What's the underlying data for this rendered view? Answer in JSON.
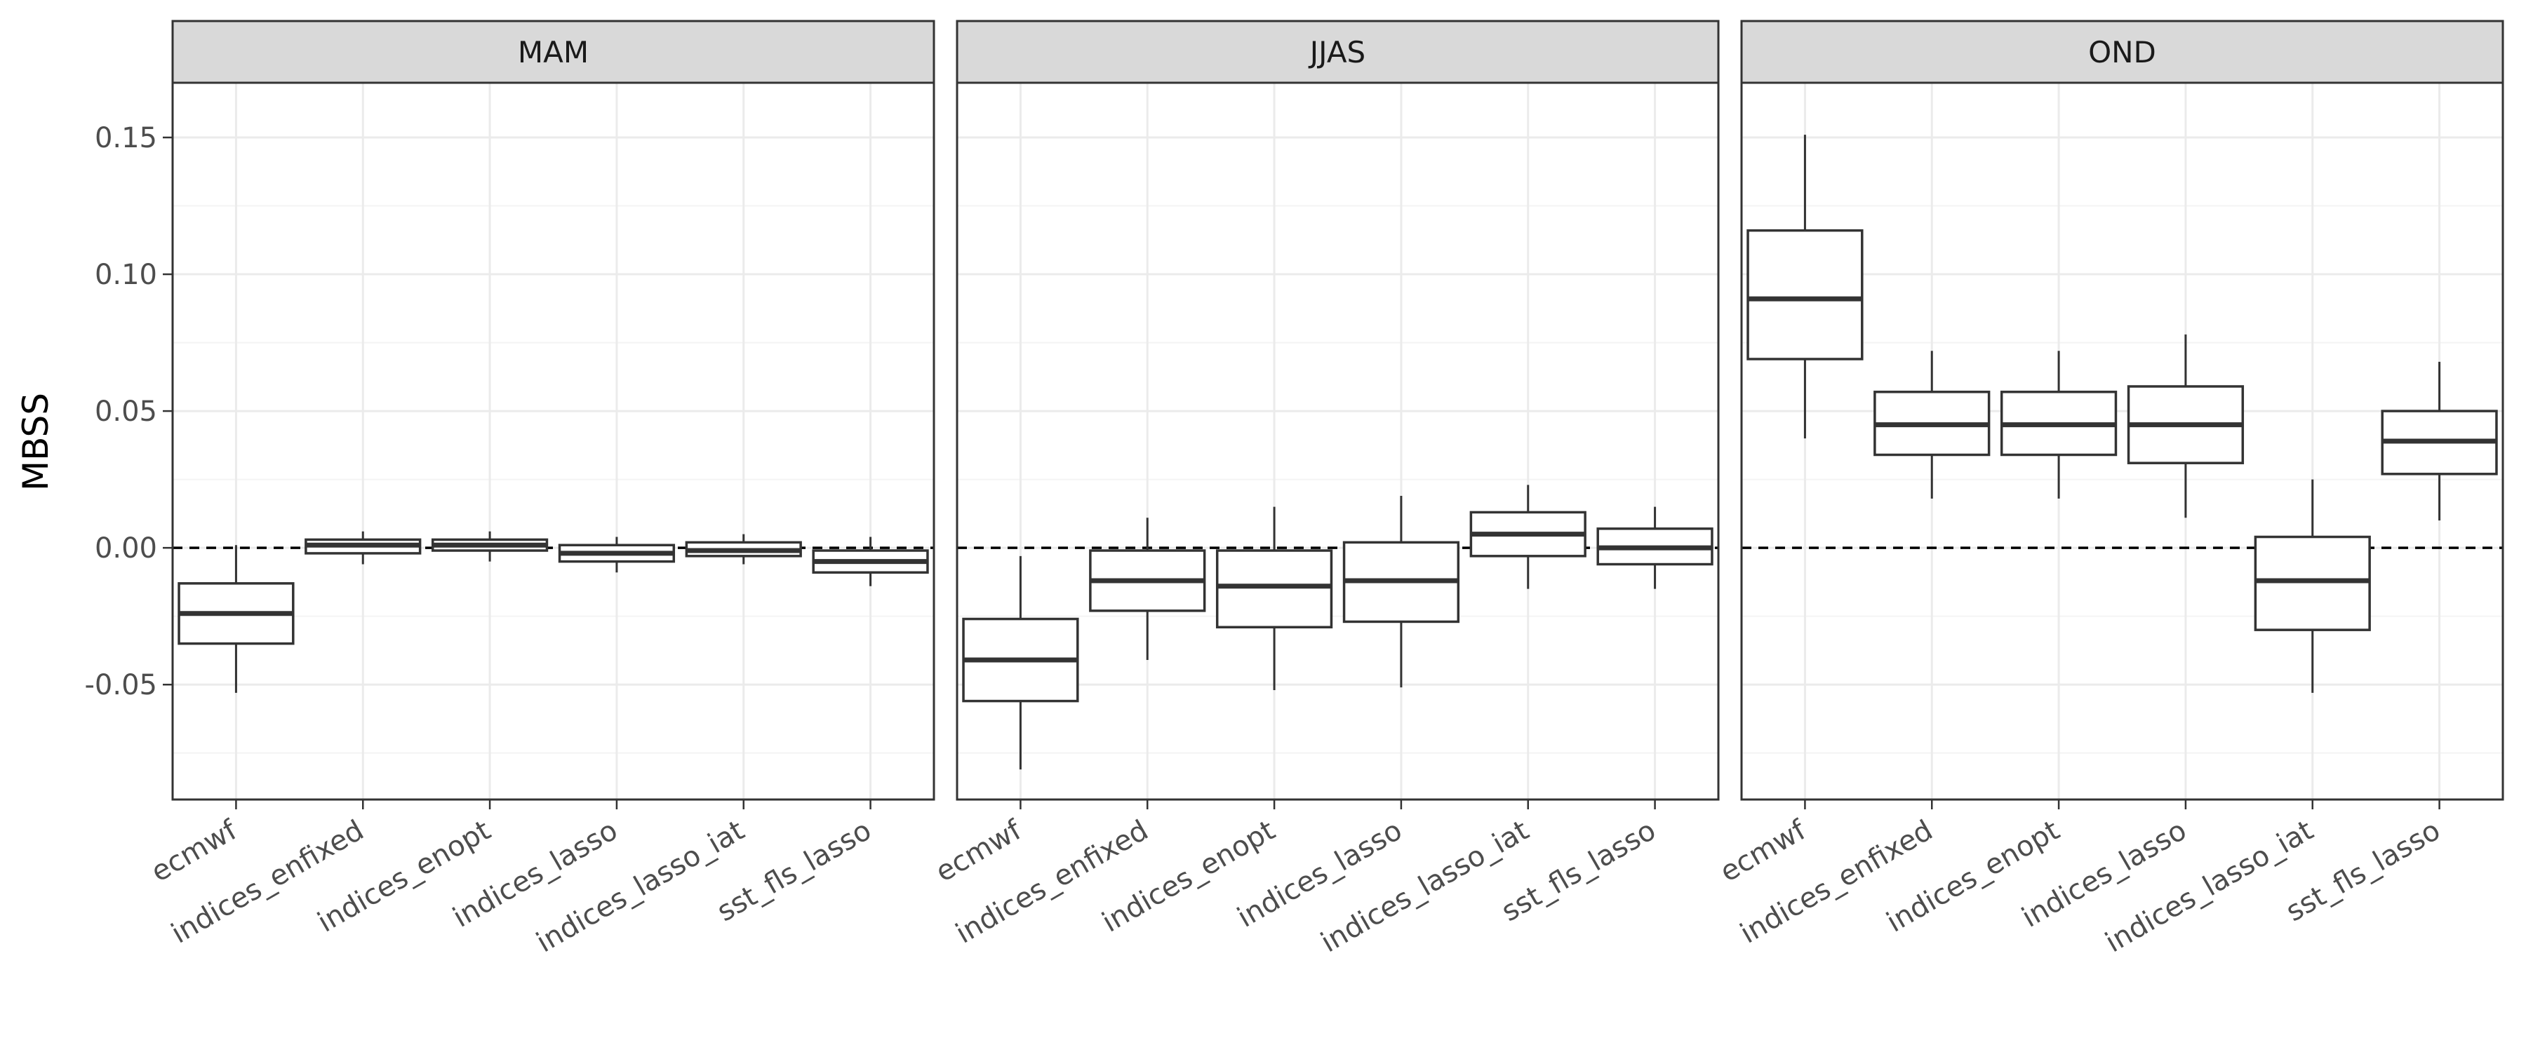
{
  "chart_data": {
    "type": "boxplot",
    "ylabel": "MBSS",
    "xlabel": "",
    "ylim": [
      -0.092,
      0.17
    ],
    "y_ticks": [
      -0.05,
      0.0,
      0.05,
      0.1,
      0.15
    ],
    "y_tick_labels": [
      "-0.05",
      "0.00",
      "0.05",
      "0.10",
      "0.15"
    ],
    "reference_line": {
      "y": 0,
      "style": "dashed"
    },
    "categories": [
      "ecmwf",
      "indices_enfixed",
      "indices_enopt",
      "indices_lasso",
      "indices_lasso_iat",
      "sst_fls_lasso"
    ],
    "facets": [
      {
        "name": "MAM",
        "boxes": [
          {
            "category": "ecmwf",
            "whisker_low": -0.053,
            "q1": -0.035,
            "median": -0.024,
            "q3": -0.013,
            "whisker_high": 0.001
          },
          {
            "category": "indices_enfixed",
            "whisker_low": -0.006,
            "q1": -0.002,
            "median": 0.001,
            "q3": 0.003,
            "whisker_high": 0.006
          },
          {
            "category": "indices_enopt",
            "whisker_low": -0.005,
            "q1": -0.001,
            "median": 0.001,
            "q3": 0.003,
            "whisker_high": 0.006
          },
          {
            "category": "indices_lasso",
            "whisker_low": -0.009,
            "q1": -0.005,
            "median": -0.002,
            "q3": 0.001,
            "whisker_high": 0.004
          },
          {
            "category": "indices_lasso_iat",
            "whisker_low": -0.006,
            "q1": -0.003,
            "median": -0.001,
            "q3": 0.002,
            "whisker_high": 0.005
          },
          {
            "category": "sst_fls_lasso",
            "whisker_low": -0.014,
            "q1": -0.009,
            "median": -0.005,
            "q3": -0.001,
            "whisker_high": 0.004
          }
        ]
      },
      {
        "name": "JJAS",
        "boxes": [
          {
            "category": "ecmwf",
            "whisker_low": -0.081,
            "q1": -0.056,
            "median": -0.041,
            "q3": -0.026,
            "whisker_high": -0.003
          },
          {
            "category": "indices_enfixed",
            "whisker_low": -0.041,
            "q1": -0.023,
            "median": -0.012,
            "q3": -0.001,
            "whisker_high": 0.011
          },
          {
            "category": "indices_enopt",
            "whisker_low": -0.052,
            "q1": -0.029,
            "median": -0.014,
            "q3": -0.001,
            "whisker_high": 0.015
          },
          {
            "category": "indices_lasso",
            "whisker_low": -0.051,
            "q1": -0.027,
            "median": -0.012,
            "q3": 0.002,
            "whisker_high": 0.019
          },
          {
            "category": "indices_lasso_iat",
            "whisker_low": -0.015,
            "q1": -0.003,
            "median": 0.005,
            "q3": 0.013,
            "whisker_high": 0.023
          },
          {
            "category": "sst_fls_lasso",
            "whisker_low": -0.015,
            "q1": -0.006,
            "median": 0.0,
            "q3": 0.007,
            "whisker_high": 0.015
          }
        ]
      },
      {
        "name": "OND",
        "boxes": [
          {
            "category": "ecmwf",
            "whisker_low": 0.04,
            "q1": 0.069,
            "median": 0.091,
            "q3": 0.116,
            "whisker_high": 0.151
          },
          {
            "category": "indices_enfixed",
            "whisker_low": 0.018,
            "q1": 0.034,
            "median": 0.045,
            "q3": 0.057,
            "whisker_high": 0.072
          },
          {
            "category": "indices_enopt",
            "whisker_low": 0.018,
            "q1": 0.034,
            "median": 0.045,
            "q3": 0.057,
            "whisker_high": 0.072
          },
          {
            "category": "indices_lasso",
            "whisker_low": 0.011,
            "q1": 0.031,
            "median": 0.045,
            "q3": 0.059,
            "whisker_high": 0.078
          },
          {
            "category": "indices_lasso_iat",
            "whisker_low": -0.053,
            "q1": -0.03,
            "median": -0.012,
            "q3": 0.004,
            "whisker_high": 0.025
          },
          {
            "category": "sst_fls_lasso",
            "whisker_low": 0.01,
            "q1": 0.027,
            "median": 0.039,
            "q3": 0.05,
            "whisker_high": 0.068
          }
        ]
      }
    ],
    "colors": {
      "box_line": "#333333",
      "strip_fill": "#d9d9d9",
      "panel_border": "#333333",
      "grid_major": "#ebebeb",
      "grid_minor": "#f4f4f4",
      "reference_line": "#000000"
    }
  }
}
